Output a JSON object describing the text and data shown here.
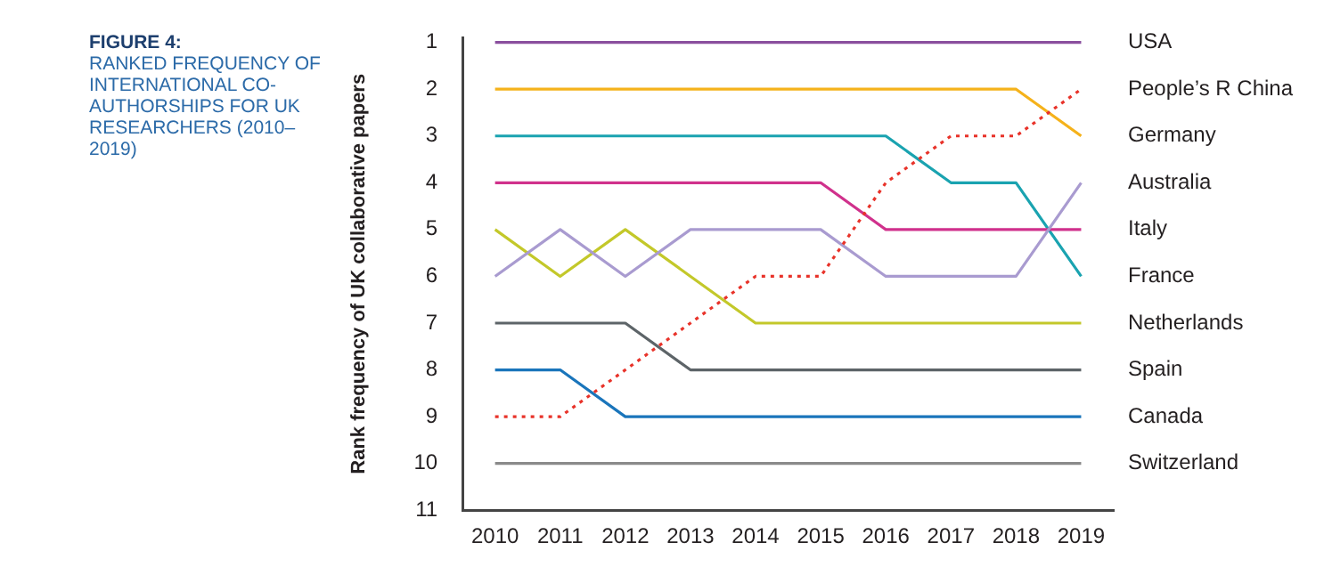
{
  "chart_data": {
    "type": "line",
    "title": "FIGURE 4:",
    "subtitle": "RANKED FREQUENCY OF INTERNATIONAL CO-AUTHORSHIPS FOR UK RESEARCHERS (2010–2019)",
    "ylabel": "Rank frequency of UK collaborative papers",
    "categories": [
      "2010",
      "2011",
      "2012",
      "2013",
      "2014",
      "2015",
      "2016",
      "2017",
      "2018",
      "2019"
    ],
    "ylim": [
      11,
      0.9
    ],
    "yticks": [
      1,
      2,
      3,
      4,
      5,
      6,
      7,
      8,
      9,
      10,
      11
    ],
    "grid": false,
    "legend": false,
    "marker": "none",
    "line_style": "solid",
    "series": [
      {
        "name": "USA",
        "color": "#8a4f9e",
        "values": [
          1,
          1,
          1,
          1,
          1,
          1,
          1,
          1,
          1,
          1
        ]
      },
      {
        "name": "People’s R China",
        "color": "#e8332a",
        "line_style": "dotted",
        "values": [
          9,
          9,
          8,
          7,
          6,
          6,
          4,
          3,
          3,
          2
        ]
      },
      {
        "name": "Germany",
        "color": "#f5b21b",
        "values": [
          2,
          2,
          2,
          2,
          2,
          2,
          2,
          2,
          2,
          3
        ]
      },
      {
        "name": "Australia",
        "color": "#a99bd0",
        "values": [
          6,
          5,
          6,
          5,
          5,
          5,
          6,
          6,
          6,
          4
        ]
      },
      {
        "name": "Italy",
        "color": "#d0318c",
        "values": [
          4,
          4,
          4,
          4,
          4,
          4,
          5,
          5,
          5,
          5
        ]
      },
      {
        "name": "France",
        "color": "#1aa3b0",
        "values": [
          3,
          3,
          3,
          3,
          3,
          3,
          3,
          4,
          4,
          6
        ]
      },
      {
        "name": "Netherlands",
        "color": "#c3c82a",
        "values": [
          5,
          6,
          5,
          6,
          7,
          7,
          7,
          7,
          7,
          7
        ]
      },
      {
        "name": "Spain",
        "color": "#5d6468",
        "values": [
          7,
          7,
          7,
          8,
          8,
          8,
          8,
          8,
          8,
          8
        ]
      },
      {
        "name": "Canada",
        "color": "#1a75bb",
        "values": [
          8,
          8,
          9,
          9,
          9,
          9,
          9,
          9,
          9,
          9
        ]
      },
      {
        "name": "Switzerland",
        "color": "#8a8a8a",
        "values": [
          10,
          10,
          10,
          10,
          10,
          10,
          10,
          10,
          10,
          10
        ]
      }
    ]
  }
}
